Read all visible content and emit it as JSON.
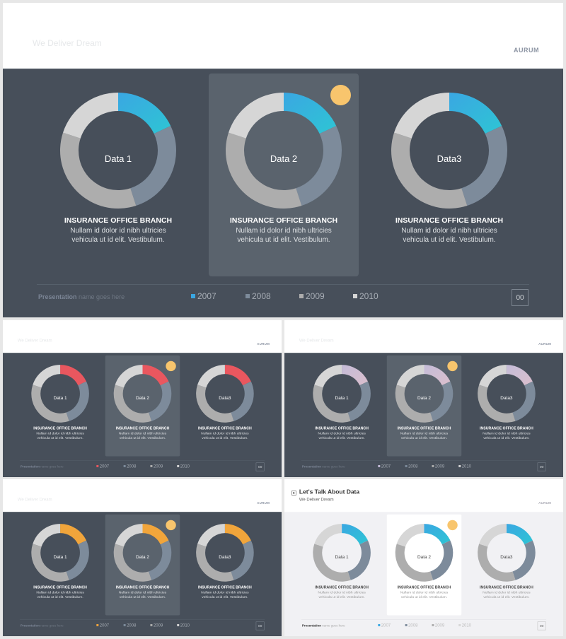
{
  "header": {
    "title": "Let's Talk About Data",
    "subtitle": "We Deliver Dream",
    "brand": "AURUM"
  },
  "footer": {
    "presentation": "Presentation",
    "name": "name goes here",
    "page": "00"
  },
  "legend_years": [
    "2007",
    "2008",
    "2009",
    "2010"
  ],
  "charts": [
    {
      "label": "Data 1",
      "caption_title": "INSURANCE OFFICE BRANCH",
      "caption_line1": "Nullam id dolor id nibh ultricies",
      "caption_line2": "vehicula ut id elit. Vestibulum."
    },
    {
      "label": "Data 2",
      "caption_title": "INSURANCE OFFICE BRANCH",
      "caption_line1": "Nullam id dolor id nibh ultricies",
      "caption_line2": "vehicula ut id elit. Vestibulum."
    },
    {
      "label": "Data3",
      "caption_title": "INSURANCE OFFICE BRANCH",
      "caption_line1": "Nullam id dolor id nibh ultricies",
      "caption_line2": "vehicula ut id elit. Vestibulum."
    }
  ],
  "chart_data": {
    "type": "pie",
    "donut": true,
    "categories": [
      "2007",
      "2008",
      "2009",
      "2010"
    ],
    "values": [
      18,
      27,
      35,
      20
    ]
  },
  "themes": [
    {
      "name": "blue-dark",
      "accent": "#3aa7e2",
      "accent2": "#2ec5d4",
      "bg": "#474f5a",
      "dot": "#f8c56d",
      "c2008": "#7d8b9b",
      "c2009": "#adadad",
      "c2010": "#d6d6d6"
    },
    {
      "name": "red-dark",
      "accent": "#e9575f",
      "accent2": "#e9575f",
      "bg": "#474f5a",
      "dot": "#f8c56d",
      "c2008": "#7d8b9b",
      "c2009": "#adadad",
      "c2010": "#d6d6d6"
    },
    {
      "name": "lavender-dark",
      "accent": "#c4bcd8",
      "accent2": "#dbbfcd",
      "bg": "#474f5a",
      "dot": "#f8c56d",
      "c2008": "#7d8b9b",
      "c2009": "#adadad",
      "c2010": "#d6d6d6"
    },
    {
      "name": "orange-dark",
      "accent": "#f1a53b",
      "accent2": "#f1a53b",
      "bg": "#474f5a",
      "dot": "#f8c56d",
      "c2008": "#7d8b9b",
      "c2009": "#adadad",
      "c2010": "#d6d6d6"
    },
    {
      "name": "blue-light",
      "accent": "#3aa7e2",
      "accent2": "#2ec5d4",
      "bg": "#f1f1f4",
      "dot": "#f8c56d",
      "c2008": "#7d8b9b",
      "c2009": "#adadad",
      "c2010": "#d6d6d6"
    }
  ]
}
